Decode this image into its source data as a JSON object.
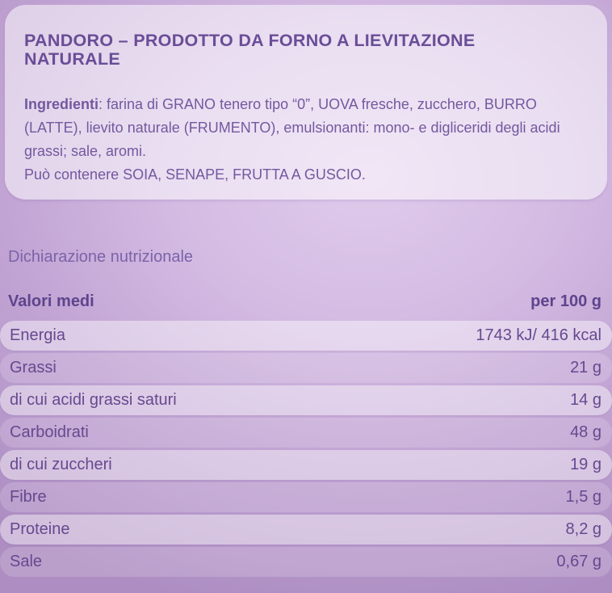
{
  "header": {
    "title_line1": "PANDORO – PRODOTTO DA FORNO A LIEVITAZIONE",
    "title_line2": "NATURALE"
  },
  "ingredients": {
    "label": "Ingredienti",
    "text": ": farina di GRANO tenero tipo “0”, UOVA fresche, zucchero, BURRO (LATTE), lievito naturale (FRUMENTO), emulsionanti: mono- e digliceridi degli acidi grassi; sale, aromi.",
    "may_contain": "Può contenere SOIA, SENAPE, FRUTTA A GUSCIO."
  },
  "nutrition": {
    "section_title": "Dichiarazione nutrizionale",
    "column_left": "Valori medi",
    "column_right": "per 100 g",
    "rows": [
      {
        "label": "Energia",
        "value": "1743 kJ/ 416 kcal"
      },
      {
        "label": "Grassi",
        "value": "21 g"
      },
      {
        "label": "di cui acidi grassi saturi",
        "value": "14 g"
      },
      {
        "label": "Carboidrati",
        "value": "48 g"
      },
      {
        "label": "di cui zuccheri",
        "value": "19 g"
      },
      {
        "label": "Fibre",
        "value": "1,5 g"
      },
      {
        "label": "Proteine",
        "value": "8,2 g"
      },
      {
        "label": "Sale",
        "value": "0,67 g"
      }
    ]
  },
  "colors": {
    "background_center": "#e0cbec",
    "background_edge": "#ad8dc2",
    "title_text": "#6a4d97",
    "body_text": "#74589f",
    "table_text": "#66498f",
    "table_header_text": "#5e448d"
  }
}
